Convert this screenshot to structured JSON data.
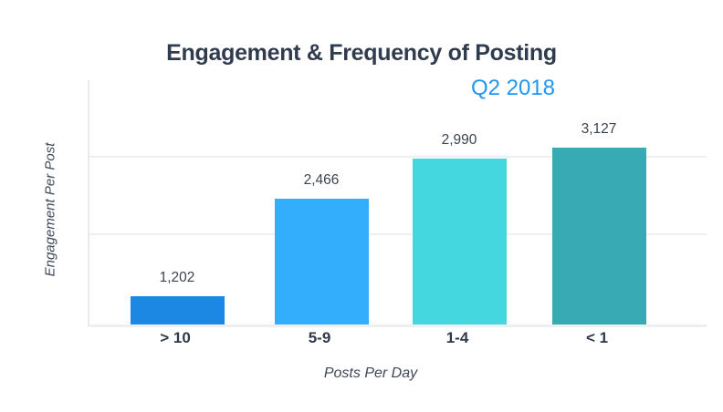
{
  "chart_data": {
    "type": "bar",
    "title": "Engagement & Frequency of Posting",
    "subtitle": "Q2 2018",
    "categories": [
      "> 10",
      "5-9",
      "1-4",
      "< 1"
    ],
    "values": [
      1202,
      2466,
      2990,
      3127
    ],
    "value_labels": [
      "1,202",
      "2,466",
      "2,990",
      "3,127"
    ],
    "xlabel": "Posts Per Day",
    "ylabel": "Engagement Per Post",
    "ylim": [
      840,
      4000
    ],
    "gridline_values": [
      2000,
      3000
    ],
    "grid": "horizontal-only",
    "legend": "none",
    "bar_colors": [
      "#1d87e4",
      "#33aefc",
      "#45d7e0",
      "#38aab4"
    ]
  },
  "colors": {
    "title": "#303c4e",
    "subtitle": "#2196f3",
    "value_label": "#3c4450",
    "category_label": "#2f3a4a",
    "axis_title": "#3d4758",
    "gridline": "#edeff1",
    "axis_line": "#e7eaec",
    "background": "#ffffff"
  }
}
